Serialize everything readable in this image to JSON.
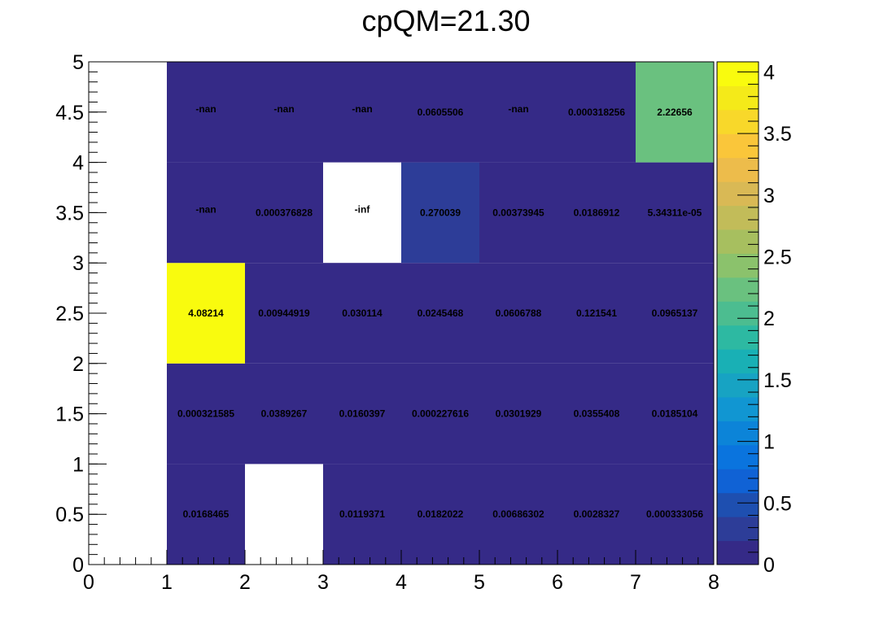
{
  "chart_data": {
    "type": "heatmap",
    "title": "cpQM=21.30",
    "xlabel": "",
    "ylabel": "",
    "xlim": [
      0,
      8
    ],
    "ylim": [
      0,
      5
    ],
    "x_ticks": [
      "0",
      "1",
      "2",
      "3",
      "4",
      "5",
      "6",
      "7",
      "8"
    ],
    "y_ticks": [
      "0",
      "0.5",
      "1",
      "1.5",
      "2",
      "2.5",
      "3",
      "3.5",
      "4",
      "4.5",
      "5"
    ],
    "zlim": [
      0,
      4.08214
    ],
    "colorbar_ticks": [
      "0",
      "0.5",
      "1",
      "1.5",
      "2",
      "2.5",
      "3",
      "3.5",
      "4"
    ],
    "colormap": [
      "#352a87",
      "#2d3d98",
      "#1e4fb0",
      "#1062d5",
      "#0a74de",
      "#0c84d8",
      "#1196d2",
      "#17a3c3",
      "#19b0b5",
      "#2db9a2",
      "#4cbd90",
      "#6ac17f",
      "#8bc26c",
      "#a7bf5f",
      "#c2bc59",
      "#d9b955",
      "#edbc4b",
      "#fac63a",
      "#f8d82a",
      "#f4ea19",
      "#f9fb0e"
    ],
    "cells": [
      {
        "x": [
          1,
          2
        ],
        "y": [
          0,
          1
        ],
        "value": 0.0168465,
        "label": "0.0168465"
      },
      {
        "x": [
          3,
          4
        ],
        "y": [
          0,
          1
        ],
        "value": 0.0119371,
        "label": "0.0119371"
      },
      {
        "x": [
          4,
          5
        ],
        "y": [
          0,
          1
        ],
        "value": 0.0182022,
        "label": "0.0182022"
      },
      {
        "x": [
          5,
          6
        ],
        "y": [
          0,
          1
        ],
        "value": 0.00686302,
        "label": "0.00686302"
      },
      {
        "x": [
          6,
          7
        ],
        "y": [
          0,
          1
        ],
        "value": 0.0028327,
        "label": "0.0028327"
      },
      {
        "x": [
          7,
          8
        ],
        "y": [
          0,
          1
        ],
        "value": 0.000333056,
        "label": "0.000333056"
      },
      {
        "x": [
          1,
          2
        ],
        "y": [
          1,
          2
        ],
        "value": 0.000321585,
        "label": "0.000321585"
      },
      {
        "x": [
          2,
          3
        ],
        "y": [
          1,
          2
        ],
        "value": 0.0389267,
        "label": "0.0389267"
      },
      {
        "x": [
          3,
          4
        ],
        "y": [
          1,
          2
        ],
        "value": 0.0160397,
        "label": "0.0160397"
      },
      {
        "x": [
          4,
          5
        ],
        "y": [
          1,
          2
        ],
        "value": 0.000227616,
        "label": "0.000227616"
      },
      {
        "x": [
          5,
          6
        ],
        "y": [
          1,
          2
        ],
        "value": 0.0301929,
        "label": "0.0301929"
      },
      {
        "x": [
          6,
          7
        ],
        "y": [
          1,
          2
        ],
        "value": 0.0355408,
        "label": "0.0355408"
      },
      {
        "x": [
          7,
          8
        ],
        "y": [
          1,
          2
        ],
        "value": 0.0185104,
        "label": "0.0185104"
      },
      {
        "x": [
          1,
          2
        ],
        "y": [
          2,
          3
        ],
        "value": 4.08214,
        "label": "4.08214"
      },
      {
        "x": [
          2,
          3
        ],
        "y": [
          2,
          3
        ],
        "value": 0.00944919,
        "label": "0.00944919"
      },
      {
        "x": [
          3,
          4
        ],
        "y": [
          2,
          3
        ],
        "value": 0.030114,
        "label": "0.030114"
      },
      {
        "x": [
          4,
          5
        ],
        "y": [
          2,
          3
        ],
        "value": 0.0245468,
        "label": "0.0245468"
      },
      {
        "x": [
          5,
          6
        ],
        "y": [
          2,
          3
        ],
        "value": 0.0606788,
        "label": "0.0606788"
      },
      {
        "x": [
          6,
          7
        ],
        "y": [
          2,
          3
        ],
        "value": 0.121541,
        "label": "0.121541"
      },
      {
        "x": [
          7,
          8
        ],
        "y": [
          2,
          3
        ],
        "value": 0.0965137,
        "label": "0.0965137"
      },
      {
        "x": [
          1,
          2
        ],
        "y": [
          3,
          4
        ],
        "value": null,
        "label": "-nan",
        "fill": "#352a87"
      },
      {
        "x": [
          2,
          3
        ],
        "y": [
          3,
          4
        ],
        "value": 0.000376828,
        "label": "0.000376828"
      },
      {
        "x": [
          3,
          4
        ],
        "y": [
          3,
          4
        ],
        "value": null,
        "label": "-inf",
        "fill": "none"
      },
      {
        "x": [
          4,
          5
        ],
        "y": [
          3,
          4
        ],
        "value": 0.270039,
        "label": "0.270039"
      },
      {
        "x": [
          5,
          6
        ],
        "y": [
          3,
          4
        ],
        "value": 0.00373945,
        "label": "0.00373945"
      },
      {
        "x": [
          6,
          7
        ],
        "y": [
          3,
          4
        ],
        "value": 0.0186912,
        "label": "0.0186912"
      },
      {
        "x": [
          7,
          8
        ],
        "y": [
          3,
          4
        ],
        "value": 5.34311e-05,
        "label": "5.34311e-05"
      },
      {
        "x": [
          1,
          2
        ],
        "y": [
          4,
          5
        ],
        "value": null,
        "label": "-nan",
        "fill": "#352a87"
      },
      {
        "x": [
          2,
          3
        ],
        "y": [
          4,
          5
        ],
        "value": null,
        "label": "-nan",
        "fill": "#352a87"
      },
      {
        "x": [
          3,
          4
        ],
        "y": [
          4,
          5
        ],
        "value": null,
        "label": "-nan",
        "fill": "#352a87"
      },
      {
        "x": [
          4,
          5
        ],
        "y": [
          4,
          5
        ],
        "value": 0.0605506,
        "label": "0.0605506"
      },
      {
        "x": [
          5,
          6
        ],
        "y": [
          4,
          5
        ],
        "value": null,
        "label": "-nan",
        "fill": "#352a87"
      },
      {
        "x": [
          6,
          7
        ],
        "y": [
          4,
          5
        ],
        "value": 0.000318256,
        "label": "0.000318256"
      },
      {
        "x": [
          7,
          8
        ],
        "y": [
          4,
          5
        ],
        "value": 2.22656,
        "label": "2.22656"
      }
    ]
  }
}
